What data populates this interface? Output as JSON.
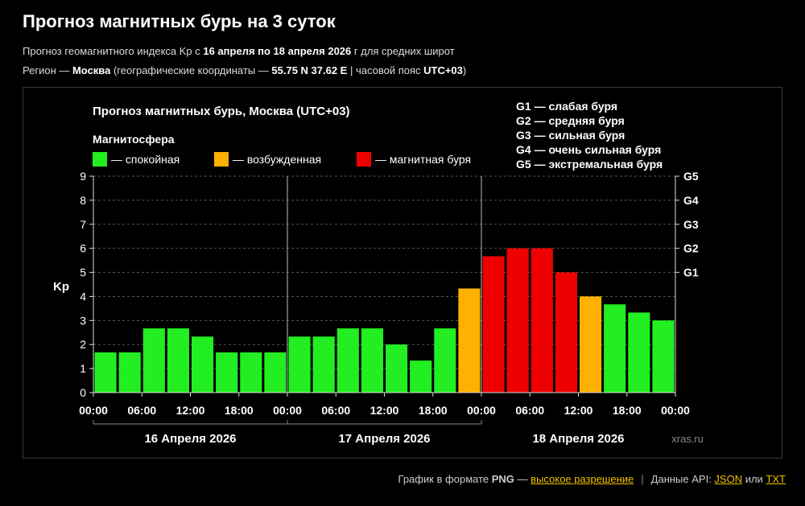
{
  "header": {
    "title": "Прогноз магнитных бурь на 3 суток",
    "line1_prefix": "Прогноз геомагнитного индекса Kp с ",
    "line1_bold": "16 апреля по 18 апреля 2026",
    "line1_suffix": " г для средних широт",
    "line2_prefix": "Регион — ",
    "line2_city": "Москва",
    "line2_mid": " (географические координаты — ",
    "line2_coords": "55.75 N 37.62 E",
    "line2_sep": " | часовой пояс ",
    "line2_tz": "UTC+03",
    "line2_end": ")"
  },
  "chart_data": {
    "type": "bar",
    "title": "Прогноз магнитных бурь, Москва (UTC+03)",
    "ylabel": "Kp",
    "ylim": [
      0,
      9
    ],
    "yticks": [
      0,
      1,
      2,
      3,
      4,
      5,
      6,
      7,
      8,
      9
    ],
    "storm_levels": [
      {
        "label": "G1",
        "kp": 5
      },
      {
        "label": "G2",
        "kp": 6
      },
      {
        "label": "G3",
        "kp": 7
      },
      {
        "label": "G4",
        "kp": 8
      },
      {
        "label": "G5",
        "kp": 9
      }
    ],
    "storm_legend": [
      "G1 — слабая буря",
      "G2 — средняя буря",
      "G3 — сильная буря",
      "G4 — очень сильная буря",
      "G5 — экстремальная буря"
    ],
    "legend_title": "Магнитосфера",
    "legend": [
      {
        "label": "— спокойная",
        "color": "#22ee22"
      },
      {
        "label": "— возбужденная",
        "color": "#ffb000"
      },
      {
        "label": "— магнитная буря",
        "color": "#ee0000"
      }
    ],
    "day_labels": [
      "16 Апреля 2026",
      "17 Апреля 2026",
      "18 Апреля 2026"
    ],
    "xtick_labels": [
      "00:00",
      "06:00",
      "12:00",
      "18:00",
      "00:00",
      "06:00",
      "12:00",
      "18:00",
      "00:00",
      "06:00",
      "12:00",
      "18:00",
      "00:00"
    ],
    "values": [
      1.67,
      1.67,
      2.67,
      2.67,
      2.33,
      1.67,
      1.67,
      1.67,
      2.33,
      2.33,
      2.67,
      2.67,
      2.0,
      1.33,
      2.67,
      4.33,
      5.67,
      6.0,
      6.0,
      5.0,
      4.0,
      3.67,
      3.33,
      3.0
    ],
    "watermark": "xras.ru",
    "grid": true
  },
  "footer": {
    "png_text": "График в формате ",
    "png_bold": "PNG",
    "png_dash": " — ",
    "png_link": "высокое разрешение",
    "sep": "|",
    "api_text": "Данные API: ",
    "json_link": "JSON",
    "or_text": " или ",
    "txt_link": "TXT"
  }
}
